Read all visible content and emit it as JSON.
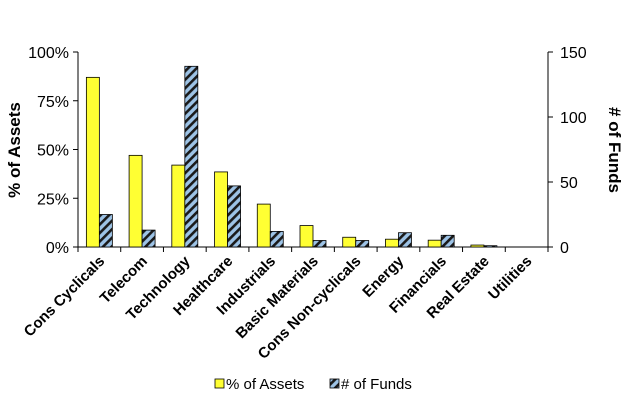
{
  "chart_data": {
    "type": "bar",
    "title": "",
    "categories": [
      "Cons Cyclicals",
      "Telecom",
      "Technology",
      "Healthcare",
      "Industrials",
      "Basic Materials",
      "Cons Non-cyclicals",
      "Energy",
      "Financials",
      "Real Estate",
      "Utilities"
    ],
    "series": [
      {
        "name": "% of Assets",
        "axis": "left",
        "color": "#ffff33",
        "values": [
          87,
          47,
          42,
          38.5,
          22,
          11,
          5,
          4,
          3.5,
          1,
          0
        ]
      },
      {
        "name": "# of Funds",
        "axis": "right",
        "color": "#9dc3e6",
        "pattern": "diagonal-hatch",
        "values": [
          25,
          13,
          139,
          47,
          12,
          5,
          5,
          11,
          9,
          1,
          0
        ]
      }
    ],
    "y_left": {
      "label": "% of Assets",
      "range": [
        0,
        100
      ],
      "ticks": [
        "0%",
        "25%",
        "50%",
        "75%",
        "100%"
      ]
    },
    "y_right": {
      "label": "# of Funds",
      "range": [
        0,
        150
      ],
      "ticks": [
        "0",
        "50",
        "100",
        "150"
      ]
    },
    "legend_position": "bottom",
    "grid": false
  }
}
